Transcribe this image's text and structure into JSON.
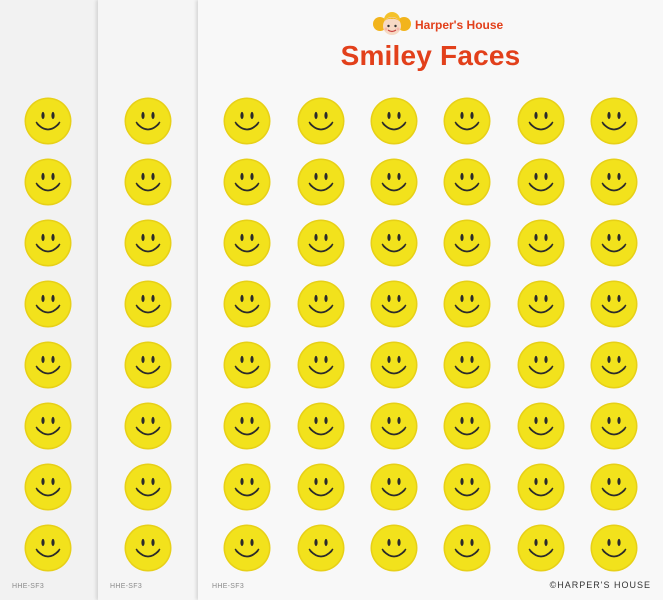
{
  "brand": {
    "name": "Harper's House",
    "logo_icon": "girl-face-logo-icon"
  },
  "title": "Smiley Faces",
  "sheet_codes": [
    "HHE-SF3",
    "HHE-SF3",
    "HHE-SF3"
  ],
  "copyright": "©HARPER'S HOUSE",
  "smiley": {
    "icon": "smiley-face-icon",
    "face_color": "#f2e21c",
    "ring_color": "#e7d017",
    "feature_color": "#2b2b2b",
    "rows": 8,
    "columns_visible": 8
  },
  "colors": {
    "accent": "#e2401b",
    "background": "#f5f5f5"
  }
}
